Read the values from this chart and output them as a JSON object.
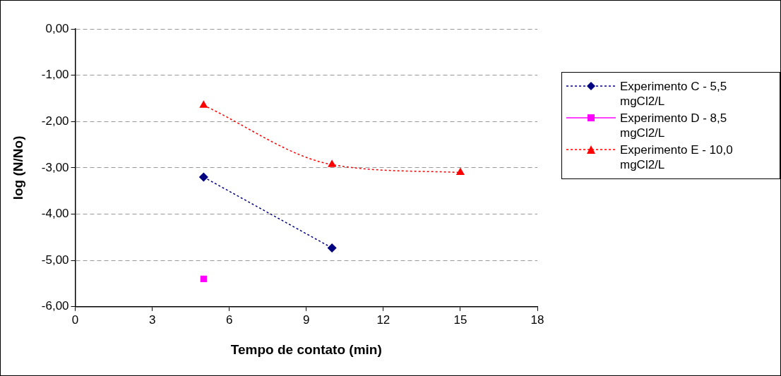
{
  "chart_data": {
    "type": "line",
    "xlabel": "Tempo de contato (min)",
    "ylabel": "log (N/No)",
    "xlim": [
      0,
      18
    ],
    "xticks": [
      0,
      3,
      6,
      9,
      12,
      15,
      18
    ],
    "ylim": [
      -6,
      0
    ],
    "yticks": [
      {
        "value": -6,
        "label": "-6,00"
      },
      {
        "value": -5,
        "label": "-5,00"
      },
      {
        "value": -4,
        "label": "-4,00"
      },
      {
        "value": -3,
        "label": "-3,00"
      },
      {
        "value": -2,
        "label": "-2,00"
      },
      {
        "value": -1,
        "label": "-1,00"
      },
      {
        "value": 0,
        "label": "0,00"
      }
    ],
    "grid": "y",
    "legend": "right",
    "series": [
      {
        "name": "Experimento C - 5,5 mgCl2/L",
        "color": "#000080",
        "x": [
          5,
          10
        ],
        "values": [
          -3.2,
          -4.73
        ],
        "marker": "diamond",
        "line_style": "dotted"
      },
      {
        "name": "Experimento D - 8,5 mgCl2/L",
        "color": "#ff00ff",
        "x": [
          5
        ],
        "values": [
          -5.4
        ],
        "marker": "square",
        "line_style": "solid"
      },
      {
        "name": "Experimento E - 10,0 mgCl2/L",
        "color": "#ff0000",
        "x": [
          5,
          10,
          15
        ],
        "values": [
          -1.65,
          -2.93,
          -3.1
        ],
        "marker": "triangle",
        "line_style": "dotted"
      }
    ]
  }
}
